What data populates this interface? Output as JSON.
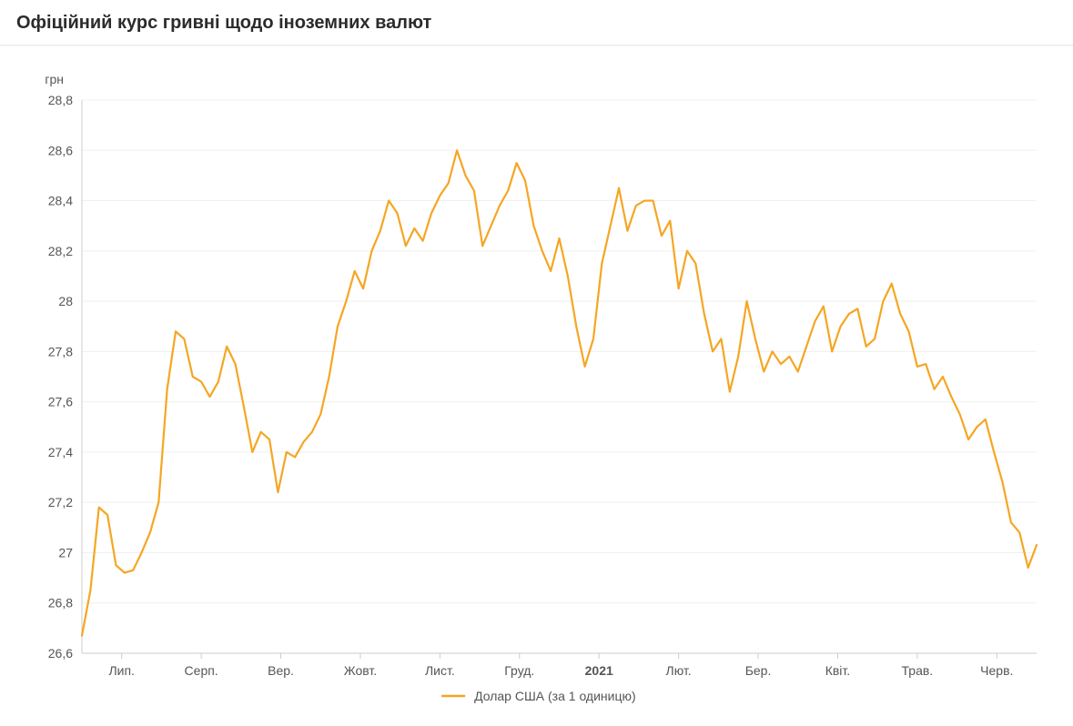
{
  "title": "Офіційний курс гривні щодо іноземних валют",
  "chart": {
    "type": "line",
    "y_unit_label": "грн",
    "background_color": "#ffffff",
    "grid_color": "#f0f0f0",
    "axis_color": "#cccccc",
    "text_color": "#555555",
    "title_fontsize": 20,
    "tick_fontsize": 14,
    "line_width": 2.2,
    "y_axis": {
      "min": 26.6,
      "max": 28.8,
      "tick_step": 0.2,
      "ticks": [
        "26,6",
        "26,8",
        "27",
        "27,2",
        "27,4",
        "27,6",
        "27,8",
        "28",
        "28,2",
        "28,4",
        "28,6",
        "28,8"
      ]
    },
    "x_axis": {
      "labels": [
        "Лип.",
        "Серп.",
        "Вер.",
        "Жовт.",
        "Лист.",
        "Груд.",
        "2021",
        "Лют.",
        "Бер.",
        "Квіт.",
        "Трав.",
        "Черв."
      ],
      "bold_index": 6
    },
    "legend": {
      "label": "Долар США (за 1 одиницю)",
      "swatch_color": "#f5a623"
    },
    "series": [
      {
        "name": "USD",
        "color": "#f5a623",
        "values": [
          26.67,
          26.85,
          27.18,
          27.15,
          26.95,
          26.92,
          26.93,
          27.0,
          27.08,
          27.2,
          27.65,
          27.88,
          27.85,
          27.7,
          27.68,
          27.62,
          27.68,
          27.82,
          27.75,
          27.58,
          27.4,
          27.48,
          27.45,
          27.24,
          27.4,
          27.38,
          27.44,
          27.48,
          27.55,
          27.7,
          27.9,
          28.0,
          28.12,
          28.05,
          28.2,
          28.28,
          28.4,
          28.35,
          28.22,
          28.29,
          28.24,
          28.35,
          28.42,
          28.47,
          28.6,
          28.5,
          28.44,
          28.22,
          28.3,
          28.38,
          28.44,
          28.55,
          28.48,
          28.3,
          28.2,
          28.12,
          28.25,
          28.1,
          27.9,
          27.74,
          27.85,
          28.15,
          28.3,
          28.45,
          28.28,
          28.38,
          28.4,
          28.4,
          28.26,
          28.32,
          28.05,
          28.2,
          28.15,
          27.95,
          27.8,
          27.85,
          27.64,
          27.78,
          28.0,
          27.85,
          27.72,
          27.8,
          27.75,
          27.78,
          27.72,
          27.82,
          27.92,
          27.98,
          27.8,
          27.9,
          27.95,
          27.97,
          27.82,
          27.85,
          28.0,
          28.07,
          27.95,
          27.88,
          27.74,
          27.75,
          27.65,
          27.7,
          27.62,
          27.55,
          27.45,
          27.5,
          27.53,
          27.4,
          27.28,
          27.12,
          27.08,
          26.94,
          27.03
        ]
      }
    ]
  }
}
